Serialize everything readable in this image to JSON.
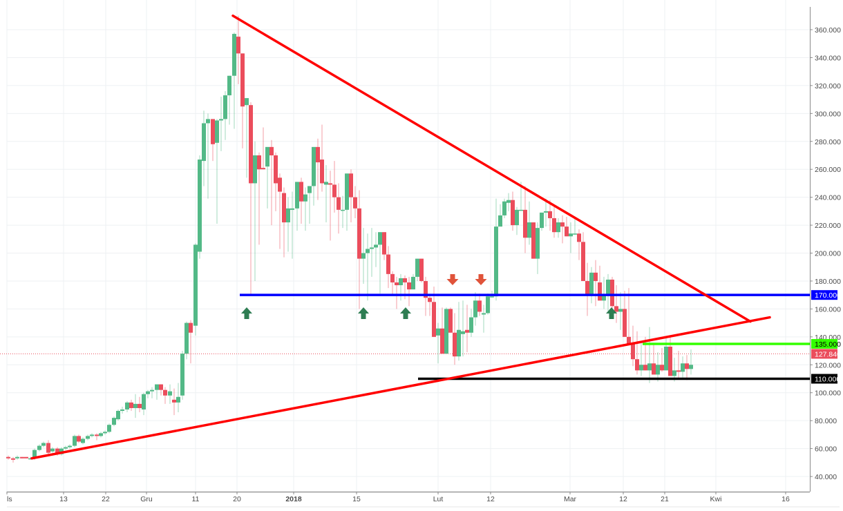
{
  "chart_data": {
    "type": "candlestick",
    "title": "",
    "xlabel": "",
    "ylabel": "",
    "ylim": [
      30,
      372
    ],
    "y_ticks": [
      40,
      60,
      80,
      100,
      120,
      140,
      160,
      180,
      200,
      220,
      240,
      260,
      280,
      300,
      320,
      340,
      360
    ],
    "y_tick_labels": [
      "40.000",
      "60.000",
      "80.000",
      "100.000",
      "120.000",
      "140.000",
      "160.000",
      "180.000",
      "200.000",
      "220.000",
      "240.000",
      "260.000",
      "280.000",
      "300.000",
      "320.000",
      "340.000",
      "360.000"
    ],
    "x_ticks": [
      {
        "label": "ls",
        "x": 10
      },
      {
        "label": "13",
        "x": 92
      },
      {
        "label": "22",
        "x": 153
      },
      {
        "label": "Gru",
        "x": 212
      },
      {
        "label": "11",
        "x": 283
      },
      {
        "label": "20",
        "x": 343
      },
      {
        "label": "2018",
        "x": 425,
        "bold": true
      },
      {
        "label": "15",
        "x": 516
      },
      {
        "label": "Lut",
        "x": 634
      },
      {
        "label": "12",
        "x": 710
      },
      {
        "label": "Mar",
        "x": 825
      },
      {
        "label": "12",
        "x": 902
      },
      {
        "label": "21",
        "x": 962
      },
      {
        "label": "Kwi",
        "x": 1036
      },
      {
        "label": "16",
        "x": 1137
      }
    ],
    "grid": true,
    "colors": {
      "up": "#53b987",
      "down": "#eb4d5c",
      "trendline": "#ff0000",
      "support_blue": "#0000ff",
      "resistance_green": "#33ff00",
      "support_black": "#000000",
      "arrow_up": "#2e7d52",
      "arrow_down": "#e0533a",
      "last_price": "#eb4d5c"
    },
    "candles": [
      [
        12,
        54,
        55,
        52,
        53
      ],
      [
        19,
        53,
        54,
        50,
        52
      ],
      [
        25,
        53,
        55,
        52,
        54
      ],
      [
        32,
        54,
        54,
        53,
        53
      ],
      [
        38,
        54,
        54,
        53,
        53
      ],
      [
        44,
        53,
        54,
        52,
        53
      ],
      [
        50,
        53,
        60,
        52,
        59
      ],
      [
        57,
        59,
        63,
        58,
        62
      ],
      [
        63,
        62,
        65,
        61,
        64
      ],
      [
        70,
        64,
        66,
        55,
        57
      ],
      [
        76,
        58,
        61,
        57,
        60
      ],
      [
        83,
        60,
        61,
        55,
        57
      ],
      [
        89,
        56,
        61,
        55,
        60
      ],
      [
        95,
        60,
        62,
        59,
        61
      ],
      [
        101,
        61,
        63,
        60,
        62
      ],
      [
        108,
        62,
        70,
        61,
        69
      ],
      [
        114,
        69,
        70,
        64,
        65
      ],
      [
        120,
        64,
        68,
        63,
        67
      ],
      [
        127,
        67,
        70,
        66,
        69
      ],
      [
        133,
        69,
        71,
        68,
        70
      ],
      [
        140,
        70,
        71,
        66,
        69
      ],
      [
        146,
        69,
        72,
        68,
        71
      ],
      [
        152,
        71,
        73,
        70,
        72
      ],
      [
        158,
        72,
        78,
        71,
        77
      ],
      [
        165,
        77,
        83,
        76,
        82
      ],
      [
        171,
        81,
        88,
        80,
        87
      ],
      [
        177,
        87,
        90,
        85,
        88
      ],
      [
        184,
        88,
        94,
        86,
        93
      ],
      [
        190,
        93,
        95,
        87,
        89
      ],
      [
        196,
        89,
        99,
        82,
        92
      ],
      [
        202,
        92,
        97,
        86,
        89
      ],
      [
        208,
        88,
        100,
        84,
        99
      ],
      [
        214,
        99,
        102,
        96,
        101
      ],
      [
        220,
        101,
        104,
        96,
        102
      ],
      [
        227,
        102,
        105,
        95,
        106
      ],
      [
        233,
        106,
        106,
        98,
        102
      ],
      [
        239,
        102,
        104,
        92,
        98
      ],
      [
        246,
        98,
        106,
        92,
        101
      ],
      [
        252,
        95,
        103,
        84,
        93
      ],
      [
        258,
        93,
        107,
        86,
        97
      ],
      [
        264,
        98,
        130,
        95,
        128
      ],
      [
        270,
        128,
        151,
        124,
        150
      ],
      [
        276,
        150,
        152,
        121,
        143
      ],
      [
        283,
        148,
        207,
        141,
        206
      ],
      [
        289,
        201,
        270,
        196,
        267
      ],
      [
        295,
        266,
        302,
        248,
        293
      ],
      [
        301,
        293,
        300,
        239,
        296
      ],
      [
        308,
        296,
        291,
        266,
        278
      ],
      [
        314,
        279,
        296,
        221,
        295
      ],
      [
        320,
        295,
        312,
        273,
        296
      ],
      [
        326,
        296,
        316,
        281,
        313
      ],
      [
        332,
        313,
        320,
        292,
        327
      ],
      [
        339,
        327,
        358,
        289,
        357
      ],
      [
        345,
        355,
        370,
        321,
        343
      ],
      [
        351,
        343,
        340,
        275,
        305
      ],
      [
        357,
        306,
        297,
        254,
        311
      ],
      [
        363,
        306,
        308,
        170,
        250
      ],
      [
        369,
        250,
        280,
        180,
        270
      ],
      [
        375,
        270,
        272,
        206,
        260
      ],
      [
        381,
        261,
        290,
        260,
        260
      ],
      [
        387,
        262,
        262,
        232,
        276
      ],
      [
        393,
        276,
        281,
        220,
        270
      ],
      [
        399,
        270,
        272,
        230,
        250
      ],
      [
        405,
        254,
        257,
        203,
        244
      ],
      [
        411,
        243,
        247,
        197,
        222
      ],
      [
        417,
        222,
        240,
        201,
        232
      ],
      [
        423,
        231,
        244,
        196,
        232
      ],
      [
        430,
        232,
        246,
        216,
        251
      ],
      [
        436,
        251,
        254,
        221,
        237
      ],
      [
        442,
        237,
        247,
        216,
        242
      ],
      [
        448,
        243,
        247,
        221,
        248
      ],
      [
        454,
        248,
        258,
        234,
        276
      ],
      [
        460,
        276,
        282,
        238,
        265
      ],
      [
        466,
        267,
        292,
        244,
        250
      ],
      [
        472,
        249,
        263,
        222,
        251
      ],
      [
        478,
        250,
        259,
        209,
        249
      ],
      [
        484,
        249,
        266,
        229,
        240
      ],
      [
        490,
        240,
        250,
        214,
        231
      ],
      [
        496,
        231,
        241,
        218,
        231
      ],
      [
        502,
        231,
        250,
        216,
        257
      ],
      [
        508,
        257,
        260,
        222,
        240
      ],
      [
        514,
        240,
        248,
        225,
        232
      ],
      [
        520,
        232,
        245,
        160,
        196
      ],
      [
        526,
        196,
        218,
        178,
        200
      ],
      [
        532,
        200,
        214,
        166,
        203
      ],
      [
        538,
        203,
        218,
        183,
        204
      ],
      [
        544,
        204,
        215,
        190,
        206
      ],
      [
        550,
        206,
        215,
        171,
        215
      ],
      [
        556,
        215,
        209,
        195,
        199
      ],
      [
        562,
        199,
        205,
        175,
        185
      ],
      [
        568,
        185,
        187,
        170,
        179
      ],
      [
        574,
        179,
        183,
        160,
        177
      ],
      [
        580,
        177,
        185,
        166,
        182
      ],
      [
        586,
        182,
        184,
        167,
        179
      ],
      [
        592,
        179,
        183,
        162,
        174
      ],
      [
        598,
        174,
        185,
        175,
        183
      ],
      [
        604,
        183,
        196,
        180,
        196
      ],
      [
        610,
        196,
        196,
        179,
        180
      ],
      [
        616,
        180,
        183,
        155,
        168
      ],
      [
        622,
        168,
        170,
        155,
        165
      ],
      [
        628,
        165,
        176,
        149,
        140
      ],
      [
        634,
        141,
        150,
        121,
        146
      ],
      [
        640,
        146,
        161,
        131,
        128
      ],
      [
        646,
        128,
        161,
        130,
        160
      ],
      [
        652,
        160,
        161,
        143,
        143
      ],
      [
        658,
        143,
        157,
        120,
        126
      ],
      [
        664,
        126,
        165,
        123,
        145
      ],
      [
        670,
        142,
        166,
        126,
        144
      ],
      [
        676,
        145,
        163,
        129,
        143
      ],
      [
        682,
        143,
        160,
        140,
        154
      ],
      [
        688,
        154,
        172,
        148,
        166
      ],
      [
        694,
        166,
        171,
        155,
        158
      ],
      [
        700,
        156,
        163,
        143,
        157
      ],
      [
        706,
        157,
        171,
        156,
        169
      ],
      [
        712,
        169,
        173,
        168,
        169
      ],
      [
        718,
        169,
        239,
        166,
        219
      ],
      [
        724,
        219,
        235,
        222,
        227
      ],
      [
        730,
        227,
        239,
        225,
        237
      ],
      [
        736,
        236,
        243,
        230,
        238
      ],
      [
        742,
        238,
        244,
        216,
        220
      ],
      [
        748,
        220,
        233,
        213,
        231
      ],
      [
        754,
        231,
        251,
        234,
        231
      ],
      [
        760,
        231,
        248,
        200,
        211
      ],
      [
        766,
        211,
        237,
        206,
        222
      ],
      [
        772,
        222,
        210,
        205,
        196
      ],
      [
        778,
        196,
        222,
        185,
        218
      ],
      [
        784,
        218,
        229,
        216,
        229
      ],
      [
        790,
        229,
        239,
        219,
        230
      ],
      [
        796,
        230,
        238,
        216,
        225
      ],
      [
        802,
        225,
        233,
        211,
        215
      ],
      [
        808,
        215,
        225,
        211,
        222
      ],
      [
        814,
        222,
        227,
        207,
        219
      ],
      [
        820,
        219,
        226,
        213,
        212
      ],
      [
        826,
        212,
        222,
        200,
        214
      ],
      [
        832,
        214,
        226,
        213,
        214
      ],
      [
        838,
        214,
        217,
        195,
        208
      ],
      [
        844,
        208,
        215,
        190,
        180
      ],
      [
        850,
        180,
        193,
        155,
        170
      ],
      [
        856,
        170,
        190,
        164,
        186
      ],
      [
        862,
        186,
        195,
        162,
        180
      ],
      [
        868,
        179,
        191,
        169,
        166
      ],
      [
        874,
        166,
        183,
        160,
        170
      ],
      [
        880,
        170,
        185,
        157,
        181
      ],
      [
        886,
        181,
        183,
        153,
        162
      ],
      [
        892,
        162,
        177,
        150,
        158
      ],
      [
        898,
        158,
        172,
        145,
        160
      ],
      [
        904,
        160,
        173,
        149,
        140
      ],
      [
        910,
        140,
        175,
        138,
        135
      ],
      [
        916,
        135,
        148,
        119,
        124
      ],
      [
        922,
        124,
        144,
        113,
        116
      ],
      [
        928,
        116,
        136,
        112,
        120
      ],
      [
        934,
        120,
        140,
        118,
        116
      ],
      [
        940,
        116,
        147,
        107,
        121
      ],
      [
        946,
        121,
        135,
        115,
        113
      ],
      [
        952,
        113,
        129,
        108,
        120
      ],
      [
        958,
        120,
        132,
        115,
        116
      ],
      [
        964,
        116,
        140,
        116,
        133
      ],
      [
        970,
        133,
        140,
        120,
        112
      ],
      [
        976,
        112,
        125,
        108,
        116
      ],
      [
        982,
        116,
        130,
        110,
        115
      ],
      [
        988,
        115,
        126,
        111,
        121
      ],
      [
        994,
        121,
        127,
        109,
        117
      ],
      [
        1000,
        117,
        131,
        113,
        120
      ]
    ],
    "annotations": {
      "horizontal_lines": [
        {
          "label": "170.000",
          "value": 170,
          "color": "#0000ff"
        },
        {
          "label": "135.000",
          "value": 135,
          "color": "#33ff00"
        },
        {
          "label": "110.000",
          "value": 110,
          "color": "#000000"
        }
      ],
      "last_price": {
        "label": "127.840",
        "value": 127.84
      },
      "trendlines": [
        {
          "name": "descending-resistance",
          "from": [
            337,
            370
          ],
          "to": [
            1086,
            151
          ]
        },
        {
          "name": "ascending-support",
          "from": [
            46,
            53
          ],
          "to": [
            1114,
            154
          ]
        }
      ],
      "up_arrows_x": [
        357,
        526,
        587,
        885
      ],
      "down_arrows_x": [
        655,
        696
      ]
    }
  }
}
